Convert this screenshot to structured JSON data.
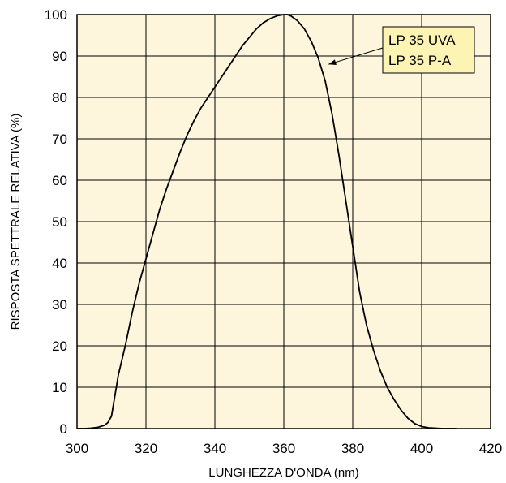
{
  "chart_data": {
    "type": "line",
    "xlabel": "LUNGHEZZA D'ONDA (nm)",
    "ylabel": "RISPOSTA SPETTRALE RELATIVA (%)",
    "xlim": [
      300,
      420
    ],
    "ylim": [
      0,
      100
    ],
    "x_ticks": [
      "300",
      "320",
      "340",
      "360",
      "380",
      "400",
      "420"
    ],
    "y_ticks": [
      "0",
      "10",
      "20",
      "30",
      "40",
      "50",
      "60",
      "70",
      "80",
      "90",
      "100"
    ],
    "grid": true,
    "background_color": "#fdf5dc",
    "line_color": "#000000",
    "annotation": {
      "lines": [
        "LP 35 UVA",
        "LP 35 P-A"
      ],
      "box_color": "#fdf4b3",
      "points_to": {
        "x": 373,
        "y": 88
      }
    },
    "series": [
      {
        "x": [
          300,
          302,
          304,
          306,
          308,
          309,
          310,
          311,
          312,
          314,
          316,
          318,
          320,
          322,
          324,
          326,
          328,
          330,
          332,
          334,
          336,
          338,
          340,
          342,
          344,
          346,
          348,
          350,
          352,
          354,
          356,
          358,
          360,
          361,
          362,
          364,
          366,
          368,
          370,
          372,
          374,
          376,
          378,
          380,
          382,
          384,
          386,
          388,
          390,
          392,
          394,
          396,
          398,
          400,
          402,
          404,
          406,
          408,
          410
        ],
        "y": [
          0,
          0,
          0.1,
          0.3,
          0.8,
          1.5,
          3,
          8,
          13,
          20,
          28,
          35,
          41,
          47,
          53,
          58,
          62.5,
          67,
          71,
          74.5,
          77.5,
          80,
          82.5,
          85,
          87.5,
          90,
          92.5,
          94.5,
          96.5,
          98,
          99,
          99.7,
          100,
          100,
          99.7,
          98.5,
          96.5,
          93.5,
          89.5,
          84,
          76,
          66,
          55,
          44,
          33,
          25,
          19,
          14,
          10,
          7,
          4.5,
          2.5,
          1.2,
          0.5,
          0.2,
          0.1,
          0,
          0,
          0
        ]
      }
    ]
  }
}
